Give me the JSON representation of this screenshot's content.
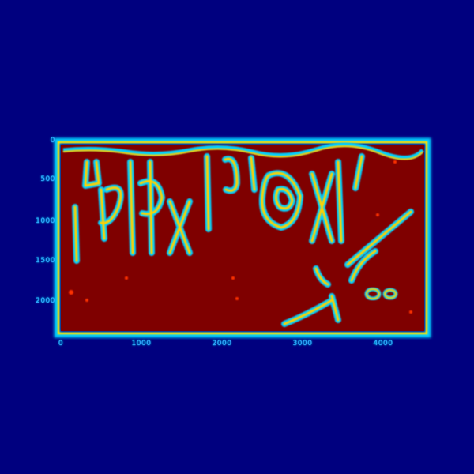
{
  "colors": {
    "background": "#00007f",
    "fill": "#7f0000",
    "edge": "#00cfff",
    "edge_inner": "#ffd000",
    "hot": "#ff3000"
  },
  "image": {
    "colormap": "jet",
    "content": "edge-magnitude-map"
  },
  "axes": {
    "x_ticks": [
      "0",
      "1000",
      "2000",
      "3000",
      "4000"
    ],
    "y_ticks": [
      "0",
      "500",
      "1000",
      "1500",
      "2000"
    ]
  }
}
